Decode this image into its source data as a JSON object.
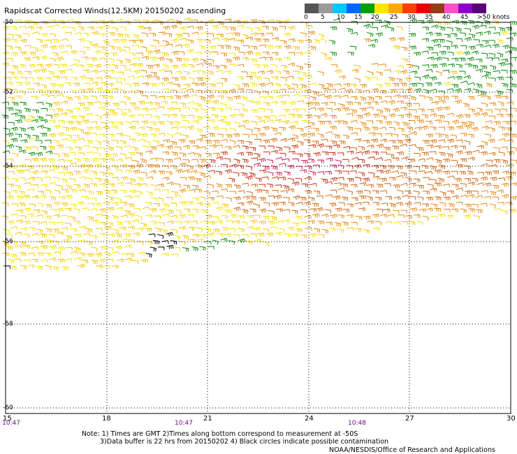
{
  "title": "Rapidscat Corrected Winds(12.5KM) 20150202 ascending",
  "colorbar": {
    "units": "knots",
    "labels": [
      "0",
      "5",
      "10",
      "15",
      "20",
      "25",
      "30",
      "35",
      "40",
      "45",
      ">50 knots"
    ],
    "colors": [
      "#555555",
      "#9a9a9a",
      "#00c8ff",
      "#0064ff",
      "#00a000",
      "#ffe600",
      "#ffaa00",
      "#ff3c00",
      "#e60000",
      "#963c14",
      "#ff50c8",
      "#8c00c8",
      "#5a0078"
    ]
  },
  "map": {
    "lat_labels": [
      "-50",
      "-52",
      "-54",
      "-56",
      "-58",
      "-60"
    ],
    "lon_labels": [
      "15",
      "18",
      "21",
      "24",
      "27",
      "30"
    ],
    "time_labels": [
      "10:47",
      "10:47",
      "10:48"
    ],
    "wind_colors": {
      "green": "#0a8a0a",
      "yellow": "#f2e200",
      "gold": "#f5c400",
      "orange": "#e88a10",
      "darkorange": "#d26a10",
      "red": "#c83010",
      "magenta": "#c81a5a",
      "black": "#000000"
    }
  },
  "notes": [
    "Note: 1) Times are GMT 2)Times along bottom correspond to measurement at -50S",
    "3)Data buffer is 22 hrs from 20150202 4) Black circles indicate possible contamination"
  ],
  "credit": "NOAA/NESDIS/Office of Research and Applications"
}
